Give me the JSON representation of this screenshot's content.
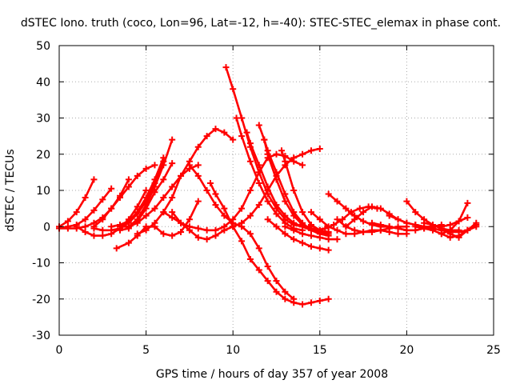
{
  "chart_data": {
    "type": "line",
    "title": "dSTEC Iono. truth (coco, Lon=96, Lat=-12, h=-40): STEC-STEC_elemax in phase cont.",
    "xlabel": "GPS time / hours of day 357 of year 2008",
    "ylabel": "dSTEC  / TECUs",
    "xlim": [
      0,
      25
    ],
    "ylim": [
      -30,
      50
    ],
    "xticks": [
      0,
      5,
      10,
      15,
      20,
      25
    ],
    "yticks": [
      -30,
      -20,
      -10,
      0,
      10,
      20,
      30,
      40,
      50
    ],
    "grid": true,
    "line_color": "#ff0000",
    "series": [
      {
        "x": [
          0,
          0.5,
          1.0,
          1.5,
          2.0
        ],
        "y": [
          0,
          1.5,
          4,
          8,
          13
        ]
      },
      {
        "x": [
          0,
          0.5,
          1.0,
          1.5,
          2.0,
          2.5,
          3.0
        ],
        "y": [
          -0.5,
          0,
          0.5,
          2,
          4.5,
          7.5,
          10.5
        ]
      },
      {
        "x": [
          0,
          0.5,
          1.0,
          1.5,
          2.0,
          2.5,
          3.0,
          3.5,
          4.0
        ],
        "y": [
          -0.5,
          -0.5,
          -0.5,
          0,
          1,
          2.5,
          5,
          8.5,
          13
        ]
      },
      {
        "x": [
          1.0,
          1.5,
          2.0,
          2.5,
          3.0,
          3.5,
          4.0,
          4.5,
          5.0
        ],
        "y": [
          0,
          -1.5,
          -2.5,
          -2.5,
          -2,
          -0.5,
          2,
          5.5,
          10
        ]
      },
      {
        "x": [
          2.0,
          2.5,
          3.0,
          3.5,
          4.0,
          4.5,
          5.0,
          5.5,
          6.0
        ],
        "y": [
          -0.5,
          -1,
          -1,
          -0.5,
          1,
          3.5,
          7,
          12,
          18
        ]
      },
      {
        "x": [
          3.0,
          3.5,
          4.0,
          4.5,
          5.0,
          5.5,
          6.0
        ],
        "y": [
          0,
          0.5,
          1.5,
          4,
          8,
          13,
          19
        ]
      },
      {
        "x": [
          3.5,
          4.0,
          4.5,
          5.0,
          5.5,
          6.0,
          6.5
        ],
        "y": [
          -1,
          -0.5,
          1.5,
          5,
          9.5,
          13,
          17.5
        ]
      },
      {
        "x": [
          4.0,
          4.5,
          5.0,
          5.5,
          6.0,
          6.5
        ],
        "y": [
          0,
          2,
          6,
          11,
          17,
          24
        ]
      },
      {
        "x": [
          2.0,
          2.5,
          3.0,
          3.5,
          4.0,
          4.5,
          5.0,
          5.5
        ],
        "y": [
          0,
          2,
          5,
          8,
          11,
          14,
          16,
          17
        ]
      },
      {
        "x": [
          3.3,
          4.0,
          4.5,
          5.0,
          5.5,
          6.0,
          6.5,
          7.0,
          7.5,
          8.0
        ],
        "y": [
          -6,
          -4.5,
          -2.5,
          0,
          0,
          -2,
          -2.5,
          -1.5,
          2,
          7
        ]
      },
      {
        "x": [
          3.5,
          4.0,
          4.5,
          5.0,
          5.5,
          6.0,
          6.5,
          7.0,
          7.5,
          8.0
        ],
        "y": [
          0,
          0,
          1,
          3,
          5,
          8,
          11,
          14,
          16,
          17
        ]
      },
      {
        "x": [
          4.5,
          5.0,
          5.5,
          6.0,
          6.5,
          7.0,
          7.5,
          8.0,
          8.5,
          9.0,
          9.5,
          10.0
        ],
        "y": [
          -2,
          -1,
          1,
          4,
          8,
          14,
          18,
          22,
          25,
          27,
          26,
          24
        ]
      },
      {
        "x": [
          6.0,
          6.5,
          7.0,
          7.5,
          8.0,
          8.5,
          9.0,
          9.5,
          10.0,
          10.5,
          11.0,
          11.5,
          12.0,
          12.5,
          13.0,
          13.5,
          14.0
        ],
        "y": [
          4,
          2.5,
          1,
          0,
          -0.5,
          -1,
          -1,
          0,
          2,
          5,
          10,
          15,
          19,
          20,
          19.5,
          18,
          17
        ]
      },
      {
        "x": [
          7.5,
          8.0,
          8.5,
          9.0,
          9.5,
          10.0,
          10.5,
          11.0,
          11.5,
          12.0,
          12.5,
          13.0,
          13.5
        ],
        "y": [
          17,
          14,
          10,
          6,
          3,
          1,
          0,
          -2,
          -6,
          -11,
          -15,
          -18,
          -20
        ]
      },
      {
        "x": [
          6.5,
          7.0,
          7.5,
          8.0,
          8.5,
          9.0,
          9.5,
          10.0,
          10.5,
          11.0,
          11.5,
          12.0,
          12.5,
          13.0,
          13.5,
          14.0,
          14.5,
          15.0
        ],
        "y": [
          4,
          1,
          -1,
          -3,
          -3.5,
          -2.5,
          -1,
          0,
          1,
          3,
          6,
          10,
          14,
          17,
          19,
          20,
          21,
          21.5
        ]
      },
      {
        "x": [
          8.7,
          9.0,
          9.5,
          10.0,
          10.5,
          11.0,
          11.5,
          12.0,
          12.5,
          13.0,
          13.5,
          14.0,
          14.5,
          15.0,
          15.5
        ],
        "y": [
          12,
          9,
          5,
          0,
          -4,
          -9,
          -12,
          -15,
          -18,
          -20,
          -21,
          -21.5,
          -21,
          -20.5,
          -20
        ]
      },
      {
        "x": [
          9.6,
          10.0,
          10.5,
          11.0,
          11.5,
          12.0,
          12.5,
          13.0,
          13.5,
          14.0,
          14.5
        ],
        "y": [
          44,
          38,
          30,
          22,
          15,
          9,
          5,
          2,
          0.5,
          0,
          0
        ]
      },
      {
        "x": [
          10.2,
          10.5,
          11.0,
          11.5,
          12.0,
          12.5,
          13.0,
          13.5,
          14.0
        ],
        "y": [
          30,
          25,
          18,
          12,
          7,
          3.5,
          1,
          -0.5,
          -1
        ]
      },
      {
        "x": [
          10.8,
          11.0,
          11.5,
          12.0,
          12.5,
          13.0,
          13.5,
          14.0,
          14.5,
          15.0,
          15.5
        ],
        "y": [
          26,
          23,
          17,
          11,
          6,
          3,
          1,
          0,
          -1,
          -1.5,
          -2
        ]
      },
      {
        "x": [
          11.5,
          11.8,
          12.0,
          12.5,
          13.0,
          13.5,
          14.0,
          14.5,
          15.0
        ],
        "y": [
          28,
          24,
          20,
          13,
          7,
          3,
          0.5,
          -0.5,
          -1
        ]
      },
      {
        "x": [
          11.8,
          12.0,
          12.5,
          13.0,
          13.5,
          14.0,
          14.5,
          15.0,
          15.5
        ],
        "y": [
          24,
          21,
          15,
          9,
          4,
          1,
          -1,
          -2,
          -2.5
        ]
      },
      {
        "x": [
          12.8,
          13.0,
          13.5,
          14.0,
          14.5,
          15.0,
          15.5
        ],
        "y": [
          21,
          18,
          10,
          4,
          0.5,
          -1,
          -1.5
        ]
      },
      {
        "x": [
          12.0,
          12.5,
          13.0,
          13.5,
          14.0,
          14.5,
          15.0,
          15.5
        ],
        "y": [
          2,
          0,
          -2,
          -3.5,
          -4.5,
          -5.5,
          -6,
          -6.5
        ]
      },
      {
        "x": [
          13.0,
          13.5,
          14.0,
          14.5,
          15.0,
          15.5,
          16.0
        ],
        "y": [
          0,
          -1,
          -2,
          -2.5,
          -3,
          -3.5,
          -3.5
        ]
      },
      {
        "x": [
          14.5,
          15.0,
          15.5,
          16.0,
          16.5,
          17.0,
          17.5,
          18.0,
          18.5,
          19.0,
          19.5,
          20.0
        ],
        "y": [
          4,
          2,
          0,
          -1,
          -2,
          -2,
          -1.5,
          -1,
          -1,
          -1.5,
          -2,
          -2
        ]
      },
      {
        "x": [
          15.5,
          16.0,
          16.5,
          17.0,
          17.5,
          18.0,
          18.5,
          19.0,
          19.5,
          20.0
        ],
        "y": [
          9,
          7,
          5,
          3,
          1.5,
          0.5,
          0,
          0,
          -0.5,
          -1
        ]
      },
      {
        "x": [
          14.8,
          15.3,
          15.8,
          16.3,
          16.8,
          17.3,
          17.8,
          18.3
        ],
        "y": [
          -1,
          -0.5,
          0.5,
          2,
          4,
          5,
          5.5,
          5
        ]
      },
      {
        "x": [
          16.5,
          17.0,
          17.5,
          18.0,
          18.5,
          19.0,
          19.5,
          20.0
        ],
        "y": [
          0,
          2,
          4,
          5.5,
          5,
          3.5,
          2,
          1
        ]
      },
      {
        "x": [
          16.0,
          16.5,
          17.0,
          17.5,
          18.0,
          18.5,
          19.0,
          19.5,
          20.0
        ],
        "y": [
          2,
          0,
          -1,
          -1.5,
          -1.5,
          -1,
          -0.5,
          0,
          0
        ]
      },
      {
        "x": [
          18.0,
          18.5,
          19.0,
          19.5,
          20.0,
          20.5,
          21.0
        ],
        "y": [
          1,
          0.5,
          0,
          -0.5,
          -1,
          -1,
          -0.5
        ]
      },
      {
        "x": [
          19.0,
          19.5,
          20.0,
          20.5,
          21.0,
          21.5,
          22.0
        ],
        "y": [
          3,
          2,
          1,
          0.5,
          0,
          0,
          0.5
        ]
      },
      {
        "x": [
          20.0,
          20.5,
          21.0,
          21.5,
          22.0,
          22.5,
          23.0
        ],
        "y": [
          7,
          4,
          2,
          0.5,
          -0.5,
          -1,
          -1
        ]
      },
      {
        "x": [
          20.5,
          21.0,
          21.5,
          22.0,
          22.5,
          23.0,
          23.5,
          24.0
        ],
        "y": [
          0,
          -0.5,
          -1,
          -2,
          -3,
          -2.5,
          -1,
          1
        ]
      },
      {
        "x": [
          21.0,
          21.5,
          22.0,
          22.5,
          23.0,
          23.5,
          24.0
        ],
        "y": [
          1,
          0.5,
          -0.5,
          -2,
          -3,
          -1,
          0.5
        ]
      },
      {
        "x": [
          21.5,
          22.0,
          22.5,
          23.0,
          23.5
        ],
        "y": [
          0,
          0,
          0.5,
          1.5,
          2.5
        ]
      },
      {
        "x": [
          22.0,
          22.5,
          23.0,
          23.5
        ],
        "y": [
          -2,
          -1,
          1.5,
          6.5
        ]
      },
      {
        "x": [
          20.5,
          21.0,
          21.5,
          22.0,
          22.5,
          23.0,
          23.5,
          24.0
        ],
        "y": [
          0.5,
          0,
          -0.5,
          -1,
          -1.5,
          -1.5,
          -1,
          0
        ]
      }
    ]
  }
}
